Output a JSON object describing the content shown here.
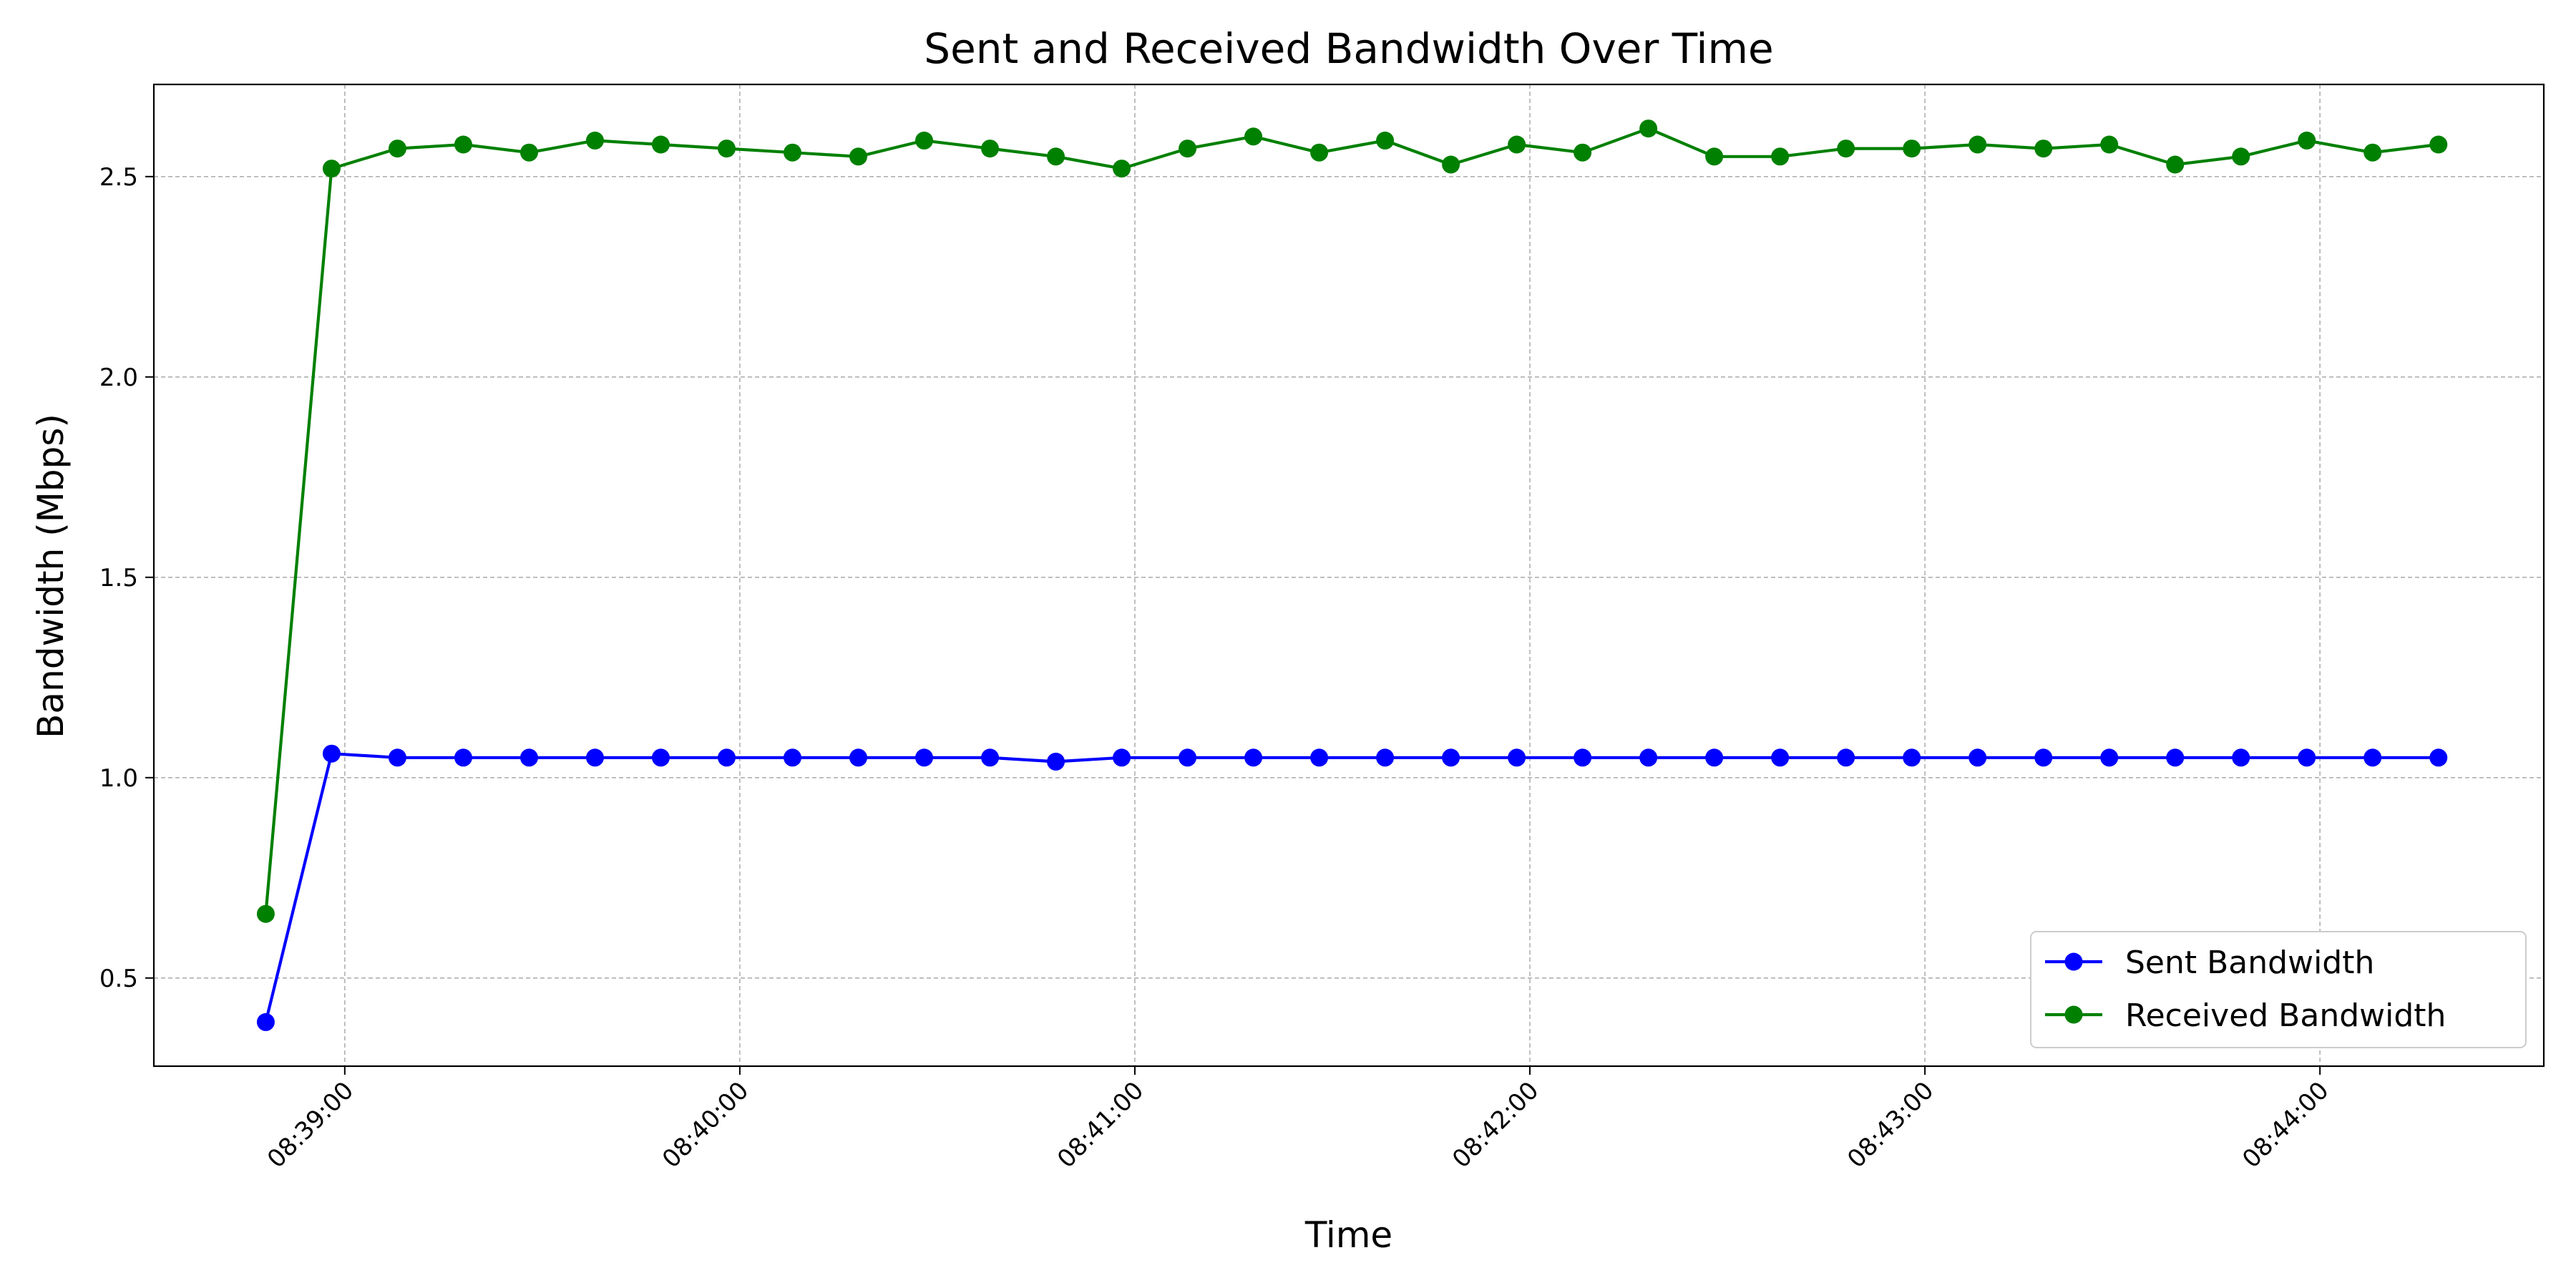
{
  "chart_data": {
    "type": "line",
    "title": "Sent and Received Bandwidth Over Time",
    "xlabel": "Time",
    "ylabel": "Bandwidth (Mbps)",
    "x_ticks": [
      "08:39:00",
      "08:40:00",
      "08:41:00",
      "08:42:00",
      "08:43:00",
      "08:44:00"
    ],
    "y_ticks": [
      "0.5",
      "1.0",
      "1.5",
      "2.0",
      "2.5"
    ],
    "x_range": [
      "08:38:31",
      "08:44:34"
    ],
    "ylim": [
      0.28,
      2.73
    ],
    "grid": true,
    "legend_position": "bottom-right",
    "x": [
      "08:38:48",
      "08:38:58",
      "08:39:08",
      "08:39:18",
      "08:39:28",
      "08:39:38",
      "08:39:48",
      "08:39:58",
      "08:40:08",
      "08:40:18",
      "08:40:28",
      "08:40:38",
      "08:40:48",
      "08:40:58",
      "08:41:08",
      "08:41:18",
      "08:41:28",
      "08:41:38",
      "08:41:48",
      "08:41:58",
      "08:42:08",
      "08:42:18",
      "08:42:28",
      "08:42:38",
      "08:42:48",
      "08:42:58",
      "08:43:08",
      "08:43:18",
      "08:43:28",
      "08:43:38",
      "08:43:48",
      "08:43:58",
      "08:44:08",
      "08:44:18"
    ],
    "series": [
      {
        "name": "Sent Bandwidth",
        "color": "#0000ff",
        "values": [
          0.39,
          1.06,
          1.05,
          1.05,
          1.05,
          1.05,
          1.05,
          1.05,
          1.05,
          1.05,
          1.05,
          1.05,
          1.04,
          1.05,
          1.05,
          1.05,
          1.05,
          1.05,
          1.05,
          1.05,
          1.05,
          1.05,
          1.05,
          1.05,
          1.05,
          1.05,
          1.05,
          1.05,
          1.05,
          1.05,
          1.05,
          1.05,
          1.05,
          1.05
        ]
      },
      {
        "name": "Received Bandwidth",
        "color": "#008000",
        "values": [
          0.66,
          2.52,
          2.57,
          2.58,
          2.56,
          2.59,
          2.58,
          2.57,
          2.56,
          2.55,
          2.59,
          2.57,
          2.55,
          2.52,
          2.57,
          2.6,
          2.56,
          2.59,
          2.53,
          2.58,
          2.56,
          2.62,
          2.55,
          2.55,
          2.57,
          2.57,
          2.58,
          2.57,
          2.58,
          2.53,
          2.55,
          2.59,
          2.56,
          2.58
        ]
      }
    ]
  }
}
